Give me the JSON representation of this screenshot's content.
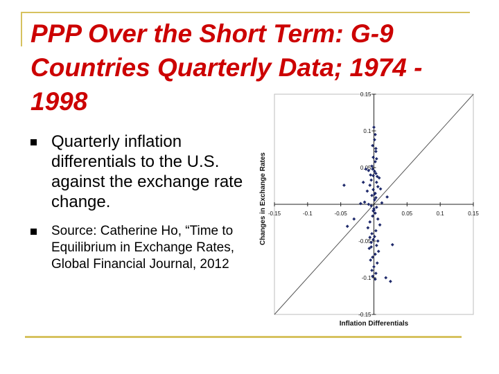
{
  "slide": {
    "title": "PPP Over the Short Term: G-9 Countries Quarterly Data; 1974 - 1998",
    "bullets": [
      "Quarterly inflation differentials to the U.S. against the exchange rate change.",
      "Source:  Catherine Ho, “Time to Equilibrium in Exchange Rates, Global Financial Journal, 2012"
    ]
  },
  "colors": {
    "title": "#cc0000",
    "accent_line": "#d6c25f",
    "points": "#1f2a6b"
  },
  "chart_data": {
    "type": "scatter",
    "title": "",
    "xlabel": "Inflation Differentials",
    "ylabel": "Changes in Exchange Rates",
    "xlim": [
      -0.15,
      0.15
    ],
    "ylim": [
      -0.15,
      0.15
    ],
    "x_ticks": [
      "-0.15",
      "-0.1",
      "-0.05",
      "0",
      "0.05",
      "0.1",
      "0.15"
    ],
    "y_ticks": [
      "0.15",
      "0.1",
      "0.05",
      "0",
      "-0.05",
      "-0.1",
      "-0.15"
    ],
    "reference_line": "45-degree line",
    "series": [
      {
        "x": [
          0,
          0.002,
          0.001,
          -0.002,
          0.003,
          -0.001,
          0.002,
          -0.003,
          -0.002,
          0.001,
          0.003,
          -0.001,
          -0.012,
          -0.008,
          -0.005,
          0.005,
          0.008,
          -0.004,
          0.004,
          -0.016,
          -0.006,
          0.006,
          0.01,
          -0.01,
          0.002,
          -0.003,
          0.003,
          0.001,
          -0.014,
          0.012,
          -0.008,
          -0.004,
          0.004,
          0.0,
          -0.001,
          0.002,
          -0.002,
          0.006,
          -0.006,
          0.009,
          -0.009,
          0.003,
          -0.003,
          0.001,
          -0.001,
          -0.004,
          0.004,
          -0.007,
          0.007,
          0.002,
          -0.002,
          -0.005,
          0.005,
          0.0,
          -0.003,
          0.003,
          -0.006,
          0.006,
          -0.004,
          -0.002,
          0.002,
          0.0,
          -0.001,
          0.001,
          0.004,
          0.018,
          0.025,
          -0.04,
          -0.045,
          0.028,
          -0.03,
          -0.02,
          0.02,
          0.003
        ],
        "y": [
          0.105,
          0.095,
          0.088,
          0.08,
          0.072,
          0.064,
          0.058,
          0.052,
          0.048,
          0.045,
          0.042,
          0.039,
          0.048,
          0.046,
          0.04,
          0.038,
          0.036,
          0.033,
          0.03,
          0.03,
          0.026,
          0.024,
          0.021,
          0.018,
          0.015,
          0.012,
          0.009,
          0.006,
          0.003,
          0.002,
          0.0,
          -0.002,
          -0.004,
          -0.006,
          -0.009,
          -0.012,
          -0.016,
          -0.02,
          -0.024,
          -0.028,
          -0.032,
          -0.036,
          -0.04,
          -0.044,
          -0.048,
          -0.052,
          -0.056,
          -0.06,
          -0.064,
          -0.068,
          -0.072,
          -0.076,
          -0.08,
          -0.085,
          -0.09,
          -0.094,
          -0.045,
          -0.05,
          -0.058,
          -0.098,
          -0.102,
          -0.008,
          0.02,
          0.014,
          0.062,
          -0.1,
          -0.105,
          -0.03,
          0.026,
          -0.055,
          -0.02,
          0.001,
          0.01,
          0.076
        ]
      }
    ]
  }
}
